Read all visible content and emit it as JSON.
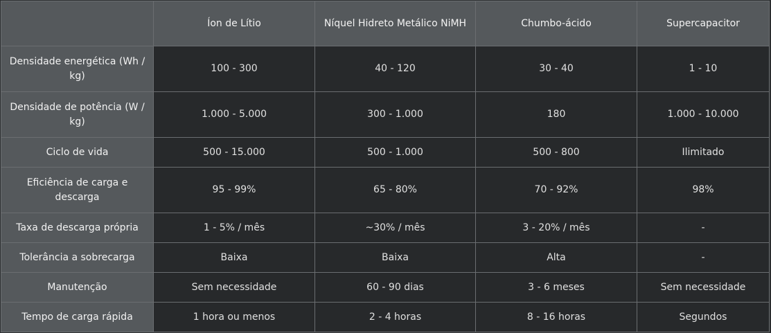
{
  "table": {
    "headers": [
      "",
      "Íon de Lítio",
      "Níquel Hidreto Metálico NiMH",
      "Chumbo-ácido",
      "Supercapacitor"
    ],
    "rows": [
      {
        "label": "Densidade energética (Wh / kg)",
        "cells": [
          "100 - 300",
          "40 - 120",
          "30 - 40",
          "1 - 10"
        ]
      },
      {
        "label": "Densidade de potência (W / kg)",
        "cells": [
          "1.000 - 5.000",
          "300 - 1.000",
          "180",
          "1.000 - 10.000"
        ]
      },
      {
        "label": "Ciclo de vida",
        "cells": [
          "500 - 15.000",
          "500 - 1.000",
          "500 - 800",
          "Ilimitado"
        ]
      },
      {
        "label": "Eficiência de carga e descarga",
        "cells": [
          "95 - 99%",
          "65 - 80%",
          "70 - 92%",
          "98%"
        ]
      },
      {
        "label": "Taxa de descarga própria",
        "cells": [
          "1 - 5% / mês",
          "~30% / mês",
          "3 - 20% / mês",
          "-"
        ]
      },
      {
        "label": "Tolerância a sobrecarga",
        "cells": [
          "Baixa",
          "Baixa",
          "Alta",
          "-"
        ]
      },
      {
        "label": "Manutenção",
        "cells": [
          "Sem necessidade",
          "60 - 90 dias",
          "3 - 6 meses",
          "Sem necessidade"
        ]
      },
      {
        "label": "Tempo de carga rápida",
        "cells": [
          "1 hora ou menos",
          "2 - 4 horas",
          "8 - 16 horas",
          "Segundos"
        ]
      }
    ]
  }
}
